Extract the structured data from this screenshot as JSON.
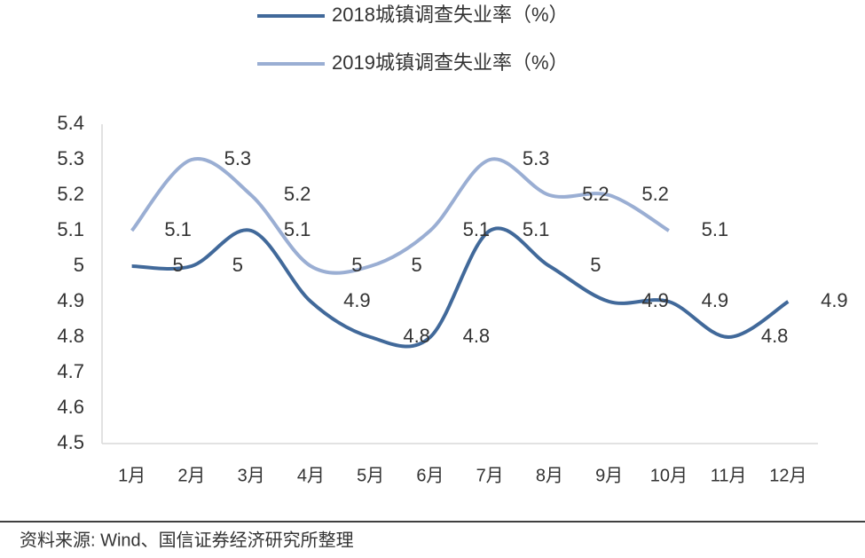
{
  "chart_data": {
    "type": "line",
    "categories": [
      "1月",
      "2月",
      "3月",
      "4月",
      "5月",
      "6月",
      "7月",
      "8月",
      "9月",
      "10月",
      "11月",
      "12月"
    ],
    "series": [
      {
        "name": "2018城镇调查失业率（%）",
        "color": "#41699a",
        "values": [
          5,
          5,
          5.1,
          4.9,
          4.8,
          4.8,
          5.1,
          5,
          4.9,
          4.9,
          4.8,
          4.9
        ]
      },
      {
        "name": "2019城镇调查失业率（%）",
        "color": "#9aaed3",
        "values": [
          5.1,
          5.3,
          5.2,
          5,
          5,
          5.1,
          5.3,
          5.2,
          5.2,
          5.1,
          null,
          null
        ]
      }
    ],
    "ylim": [
      4.5,
      5.4
    ],
    "yticks": [
      4.5,
      4.6,
      4.7,
      4.8,
      4.9,
      5,
      5.1,
      5.2,
      5.3,
      5.4
    ],
    "grid": false,
    "data_labels": true,
    "source": "资料来源: Wind、国信证券经济研究所整理"
  }
}
